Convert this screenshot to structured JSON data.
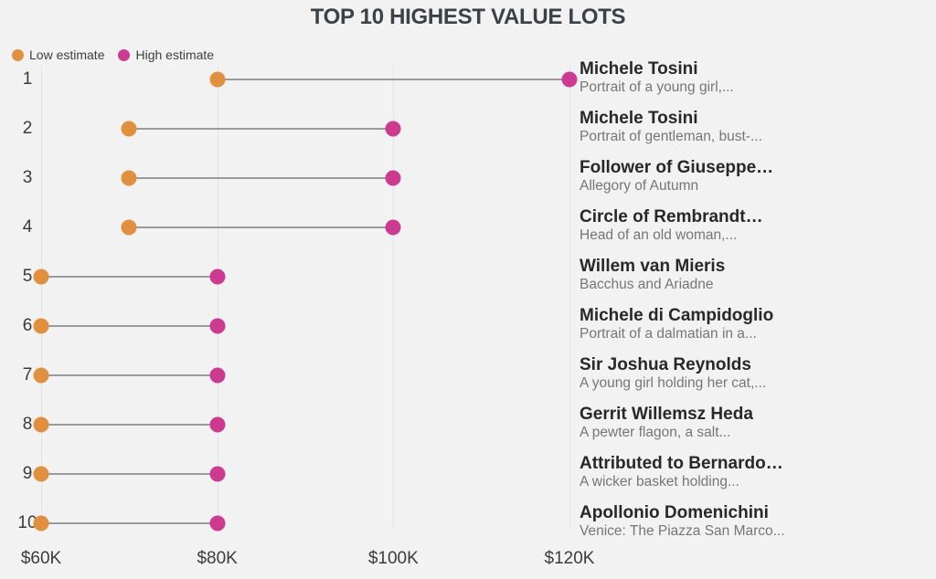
{
  "title": "TOP 10 HIGHEST VALUE LOTS",
  "legend": {
    "low": {
      "label": "Low estimate",
      "color": "#E0903F"
    },
    "high": {
      "label": "High estimate",
      "color": "#CD3B91"
    }
  },
  "colors": {
    "background": "#F2F2F3",
    "title_text": "#3A4147",
    "axis_text": "#3C3C3C",
    "gridline": "#E4E4E6",
    "connector": "#9A9A9A",
    "low_estimate": "#E0903F",
    "high_estimate": "#CD3B91",
    "artist_text": "#282828",
    "work_text": "#767676"
  },
  "chart_data": {
    "type": "dumbbell",
    "title": "TOP 10 HIGHEST VALUE LOTS",
    "unit": "USD (thousands)",
    "grid": "vertical-only",
    "legend_position": "top-left",
    "x_axis": {
      "range": [
        60,
        120
      ],
      "ticks": [
        60,
        80,
        100,
        120
      ],
      "tick_labels": [
        "$60K",
        "$80K",
        "$100K",
        "$120K"
      ]
    },
    "series": [
      {
        "name": "Low estimate",
        "color": "#E0903F"
      },
      {
        "name": "High estimate",
        "color": "#CD3B91"
      }
    ],
    "rows": [
      {
        "rank": "1",
        "artist": "Michele Tosini",
        "work": "Portrait of a young girl,...",
        "low": 80,
        "high": 120
      },
      {
        "rank": "2",
        "artist": "Michele Tosini",
        "work": "Portrait of gentleman, bust-...",
        "low": 70,
        "high": 100
      },
      {
        "rank": "3",
        "artist": "Follower of Giuseppe…",
        "work": "Allegory of Autumn",
        "low": 70,
        "high": 100
      },
      {
        "rank": "4",
        "artist": "Circle of Rembrandt…",
        "work": "Head of an old woman,...",
        "low": 70,
        "high": 100
      },
      {
        "rank": "5",
        "artist": "Willem van Mieris",
        "work": "Bacchus and Ariadne",
        "low": 60,
        "high": 80
      },
      {
        "rank": "6",
        "artist": "Michele di Campidoglio",
        "work": "Portrait of a dalmatian in a...",
        "low": 60,
        "high": 80
      },
      {
        "rank": "7",
        "artist": "Sir Joshua Reynolds",
        "work": "A young girl holding her cat,...",
        "low": 60,
        "high": 80
      },
      {
        "rank": "8",
        "artist": "Gerrit Willemsz Heda",
        "work": "A pewter flagon, a salt...",
        "low": 60,
        "high": 80
      },
      {
        "rank": "9",
        "artist": "Attributed to Bernardo…",
        "work": "A wicker basket holding...",
        "low": 60,
        "high": 80
      },
      {
        "rank": "10",
        "artist": "Apollonio Domenichini",
        "work": "Venice: The Piazza San Marco...",
        "low": 60,
        "high": 80
      }
    ]
  }
}
